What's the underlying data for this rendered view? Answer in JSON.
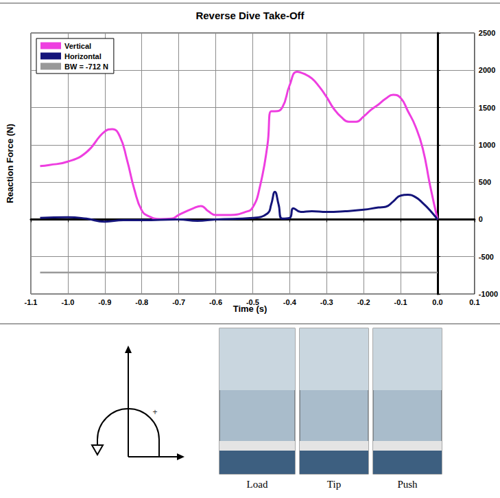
{
  "chart_data": {
    "type": "line",
    "title": "Reverse Dive Take-Off",
    "x_label": "Time (s)",
    "y_label": "Reaction Force (N)",
    "series": [
      {
        "name": "Vertical",
        "color": "#ee3ee0",
        "x": [
          -1.075,
          -1.05,
          -1.0,
          -0.95,
          -0.9,
          -0.88,
          -0.86,
          -0.84,
          -0.82,
          -0.8,
          -0.78,
          -0.75,
          -0.72,
          -0.7,
          -0.66,
          -0.64,
          -0.62,
          -0.6,
          -0.56,
          -0.52,
          -0.5,
          -0.48,
          -0.46,
          -0.45,
          -0.44,
          -0.42,
          -0.4,
          -0.38,
          -0.36,
          -0.34,
          -0.32,
          -0.3,
          -0.28,
          -0.26,
          -0.24,
          -0.22,
          -0.2,
          -0.18,
          -0.16,
          -0.14,
          -0.12,
          -0.1,
          -0.08,
          -0.06,
          -0.04,
          -0.02,
          0.0
        ],
        "values": [
          715,
          730,
          775,
          900,
          1180,
          1210,
          1120,
          800,
          400,
          120,
          40,
          5,
          10,
          60,
          150,
          180,
          110,
          60,
          60,
          100,
          160,
          450,
          1000,
          1450,
          1450,
          1500,
          1800,
          1980,
          1950,
          1890,
          1780,
          1640,
          1480,
          1370,
          1310,
          1310,
          1380,
          1470,
          1540,
          1620,
          1670,
          1630,
          1450,
          1250,
          950,
          450,
          0
        ]
      },
      {
        "name": "Horizontal",
        "color": "#14147a",
        "x": [
          -1.075,
          -1.0,
          -0.95,
          -0.9,
          -0.85,
          -0.8,
          -0.7,
          -0.65,
          -0.6,
          -0.5,
          -0.46,
          -0.45,
          -0.44,
          -0.43,
          -0.42,
          -0.4,
          -0.39,
          -0.37,
          -0.34,
          -0.3,
          -0.25,
          -0.2,
          -0.16,
          -0.14,
          -0.12,
          -0.1,
          -0.08,
          -0.06,
          -0.04,
          -0.02,
          0.0
        ],
        "values": [
          20,
          30,
          10,
          -30,
          -10,
          -10,
          0,
          -20,
          0,
          20,
          80,
          200,
          370,
          200,
          10,
          20,
          150,
          100,
          110,
          100,
          110,
          130,
          160,
          170,
          240,
          320,
          330,
          300,
          220,
          120,
          0
        ]
      },
      {
        "name": "BW = -712 N",
        "color": "#999999",
        "x": [
          -1.075,
          0.0
        ],
        "values": [
          -712,
          -712
        ]
      }
    ],
    "xlim": [
      -1.1,
      0.1
    ],
    "xticks": [
      -1.1,
      {
        "value": -1.0,
        "label": "-1.0"
      },
      -0.9,
      -0.8,
      -0.7,
      -0.6,
      -0.5,
      -0.4,
      -0.3,
      -0.2,
      -0.1,
      {
        "value": 0.0,
        "label": "0.0"
      },
      0.1
    ],
    "ylim": [
      -1000,
      2500
    ],
    "yticks": [
      -1000,
      -500,
      0,
      500,
      1000,
      1500,
      2000,
      2500
    ],
    "grid": true,
    "legend": "top-left"
  },
  "figure": {
    "sign": "+",
    "panels": [
      "Load",
      "Tip",
      "Push"
    ]
  }
}
